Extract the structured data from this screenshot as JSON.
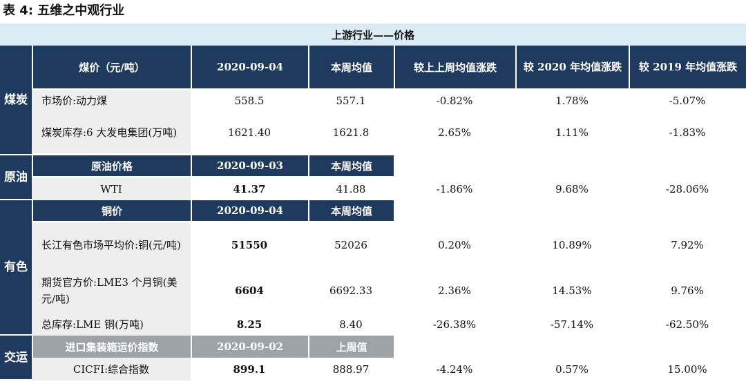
{
  "title": "表 4:  五维之中观行业",
  "caption": "上游行业——价格",
  "col_headers": {
    "coal_col1": "煤价（元/吨）",
    "date": "2020-09-04",
    "weekly_avg": "本周均值",
    "vs_last_week": "较上上周均值涨跌",
    "vs_2020": "较 2020 年均值涨跌",
    "vs_2019": "较 2019 年均值涨跌"
  },
  "sections": {
    "coal": "煤炭",
    "oil": "原油",
    "metal": "有色",
    "transport": "交运"
  },
  "coal_rows": [
    {
      "label": "市场价:动力煤",
      "date_val": "558.5",
      "avg": "557.1",
      "wow": "-0.82%",
      "y2020": "1.78%",
      "y2019": "-5.07%"
    },
    {
      "label": "煤炭库存:6 大发电集团(万吨)",
      "date_val": "1621.40",
      "avg": "1621.8",
      "wow": "2.65%",
      "y2020": "1.11%",
      "y2019": "-1.83%"
    }
  ],
  "oil_header": {
    "label": "原油价格",
    "date": "2020-09-03",
    "avg": "本周均值"
  },
  "oil_rows": [
    {
      "label": "WTI",
      "date_val": "41.37",
      "avg": "41.88",
      "wow": "-1.86%",
      "y2020": "9.68%",
      "y2019": "-28.06%"
    }
  ],
  "metal_header": {
    "label": "铜价",
    "date": "2020-09-04",
    "avg": "本周均值"
  },
  "metal_rows": [
    {
      "label": "长江有色市场平均价:铜(元/吨)",
      "date_val": "51550",
      "avg": "52026",
      "wow": "0.20%",
      "y2020": "10.89%",
      "y2019": "7.92%"
    },
    {
      "label": "期货官方价:LME3 个月铜(美元/吨)",
      "date_val": "6604",
      "avg": "6692.33",
      "wow": "2.36%",
      "y2020": "14.53%",
      "y2019": "9.76%"
    },
    {
      "label": "总库存:LME 铜(万吨)",
      "date_val": "8.25",
      "avg": "8.40",
      "wow": "-26.38%",
      "y2020": "-57.14%",
      "y2019": "-62.50%"
    }
  ],
  "transport_header": {
    "label": "进口集装箱运价指数",
    "date": "2020-09-02",
    "avg": "上周值"
  },
  "transport_rows": [
    {
      "label": "CICFI:综合指数",
      "date_val": "899.1",
      "avg": "888.97",
      "wow": "-4.24%",
      "y2020": "0.57%",
      "y2019": "15.00%"
    }
  ]
}
